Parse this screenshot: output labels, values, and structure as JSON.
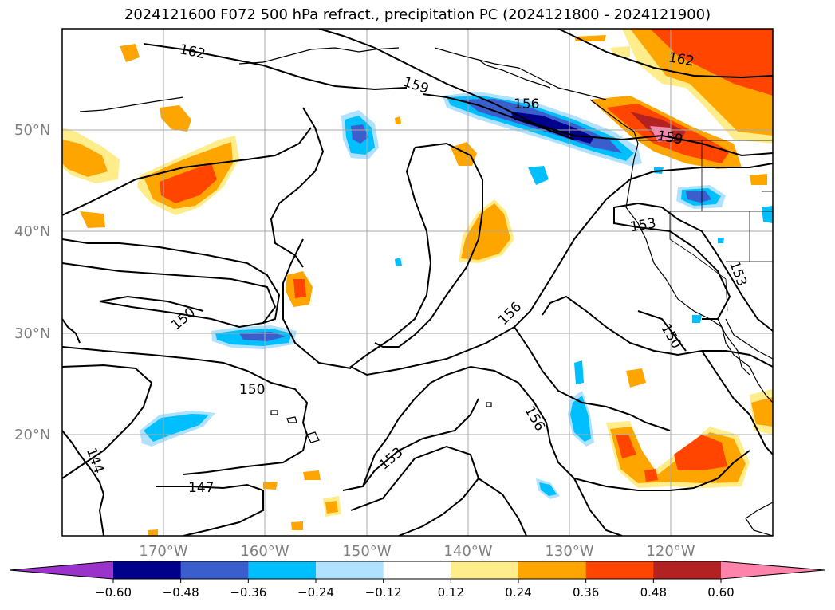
{
  "title": "2024121600 F072 500 hPa refract., precipitation PC (2024121800 - 2024121900)",
  "lat_labels": [
    "50°N",
    "40°N",
    "30°N",
    "20°N"
  ],
  "lon_labels": [
    "170°W",
    "160°W",
    "150°W",
    "140°W",
    "130°W",
    "120°W"
  ],
  "contour_labels": [
    "162",
    "159",
    "156",
    "162",
    "159",
    "153",
    "153",
    "150",
    "156",
    "150",
    "150",
    "156",
    "153",
    "144",
    "147"
  ],
  "colorbar": {
    "ticks": [
      "−0.60",
      "−0.48",
      "−0.36",
      "−0.24",
      "−0.12",
      "0.12",
      "0.24",
      "0.36",
      "0.48",
      "0.60"
    ],
    "colors": [
      "#9933cc",
      "#00008b",
      "#3a5fcd",
      "#00bfff",
      "#b0e2ff",
      "#ffffff",
      "#ffec8b",
      "#ffa500",
      "#ff4500",
      "#b22222",
      "#ff83aa"
    ]
  }
}
